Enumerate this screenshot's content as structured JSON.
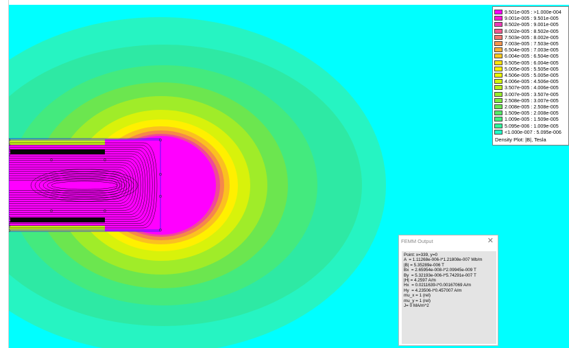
{
  "legend": {
    "entries": [
      {
        "label": "9.501e-005 : >1.000e-004",
        "color": "#ff00ff"
      },
      {
        "label": "9.001e-005 : 9.501e-005",
        "color": "#f41ad8"
      },
      {
        "label": "8.502e-005 : 9.001e-005",
        "color": "#ee3bb6"
      },
      {
        "label": "8.002e-005 : 8.502e-005",
        "color": "#f05a92"
      },
      {
        "label": "7.503e-005 : 8.002e-005",
        "color": "#f27a6f"
      },
      {
        "label": "7.003e-005 : 7.503e-005",
        "color": "#f59650"
      },
      {
        "label": "6.504e-005 : 7.003e-005",
        "color": "#f7b136"
      },
      {
        "label": "6.004e-005 : 6.504e-005",
        "color": "#f9cb1d"
      },
      {
        "label": "5.505e-005 : 6.004e-005",
        "color": "#fce20b"
      },
      {
        "label": "5.005e-005 : 5.505e-005",
        "color": "#fff200"
      },
      {
        "label": "4.506e-005 : 5.005e-005",
        "color": "#ecf700"
      },
      {
        "label": "4.006e-005 : 4.506e-005",
        "color": "#d2f50a"
      },
      {
        "label": "3.507e-005 : 4.006e-005",
        "color": "#b6f01a"
      },
      {
        "label": "3.007e-005 : 3.507e-005",
        "color": "#99ec2c"
      },
      {
        "label": "2.508e-005 : 3.007e-005",
        "color": "#7fe83f"
      },
      {
        "label": "2.008e-005 : 2.508e-005",
        "color": "#68e553"
      },
      {
        "label": "1.509e-005 : 2.008e-005",
        "color": "#55e868"
      },
      {
        "label": "1.009e-005 : 1.509e-005",
        "color": "#44ee80"
      },
      {
        "label": "5.095e-006 : 1.009e-005",
        "color": "#2ff59c"
      },
      {
        "label": "<1.000e-007 : 5.095e-006",
        "color": "#22fbc6"
      }
    ],
    "caption": "Density Plot: |B|, Tesla"
  },
  "output_window": {
    "title": "FEMM Output",
    "close_glyph": "✕",
    "lines": [
      "Point: x=339, y=0",
      "A  = 1.11268e-006-I*1.21808e-007 Wb/m",
      "|B| = 5.35289e-006 T",
      "Bx  = 2.65954e-008-I*2.09945e-009 T",
      "By  = 5.32193e-006-I*5.74291e-007 T",
      "|H| = 4.2597 A/m",
      "Hx  = 0.0211639-I*0.00167069 A/m",
      "Hy  = 4.23506-I*0.457007 A/m",
      "mu_x = 1 (rel)",
      "mu_y = 1 (rel)",
      "J= 0 MA/m^2"
    ]
  },
  "plot": {
    "background_color": "#00ffff",
    "field_colors": [
      "#26f4c2",
      "#2ee9a4",
      "#44ea7e",
      "#6ce64f",
      "#a0ec29",
      "#d8f20b",
      "#fff000",
      "#fbc020",
      "#f5884a",
      "#ee4a98"
    ],
    "core_color": "#ff00ff",
    "line_color": "#0a0a0a"
  }
}
